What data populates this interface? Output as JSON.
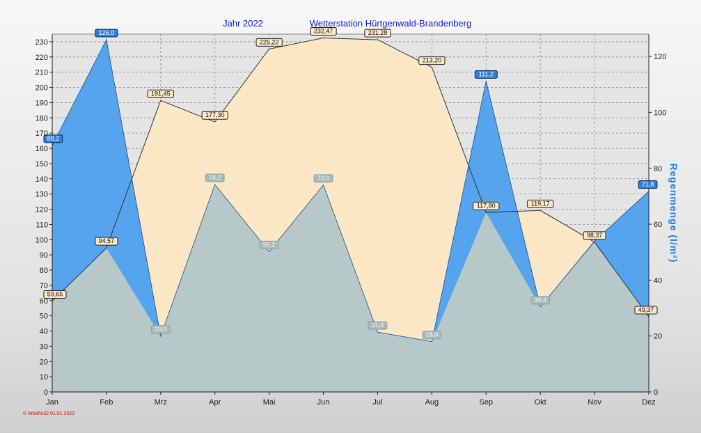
{
  "title": {
    "year": "Jahr  2022",
    "station": "Wetterstation Hürtgenwald-Brandenberg"
  },
  "footer": "© WsWin32  01.01.2023",
  "colors": {
    "background_top": "#f7f7f7",
    "background_bottom": "#cfcfcf",
    "plot_background": "#e4e4e4",
    "sunshine_fill": "#fbe6c6",
    "rain_fill": "#56a4ee",
    "overlap_fill": "#b6c8c8",
    "title": "#1c1cc8",
    "right_axis_label": "#2a7fe0",
    "left_axis_label": "#f2c58a"
  },
  "chart_data": {
    "type": "area",
    "categories": [
      "Jan",
      "Feb",
      "Mrz",
      "Apr",
      "Mai",
      "Jun",
      "Jul",
      "Aug",
      "Sep",
      "Okt",
      "Nov",
      "Dez"
    ],
    "xlabel": "",
    "y_left": {
      "label": "",
      "ylim": [
        0,
        235
      ],
      "ticks": [
        0,
        10,
        20,
        30,
        40,
        50,
        60,
        70,
        80,
        90,
        100,
        110,
        120,
        130,
        140,
        150,
        160,
        170,
        180,
        190,
        200,
        210,
        220,
        230
      ]
    },
    "y_right": {
      "label": "Regenmenge  (l/m²)",
      "ylim": [
        0,
        128
      ],
      "ticks": [
        0,
        20,
        40,
        60,
        80,
        100,
        120
      ]
    },
    "grid": true,
    "series": [
      {
        "axis": "left",
        "color": "#fbe6c6",
        "values": [
          59.65,
          94.57,
          191.45,
          177.3,
          225.22,
          232.47,
          231.28,
          213.2,
          117.8,
          119.17,
          98.37,
          49.37
        ],
        "labels": [
          "59,65",
          "94,57",
          "191,45",
          "177,30",
          "225,22",
          "232,47",
          "231,28",
          "213,20",
          "117,80",
          "119,17",
          "98,37",
          "49,37"
        ]
      },
      {
        "axis": "right",
        "color": "#56a4ee",
        "values": [
          88.2,
          126.0,
          20.0,
          74.2,
          50.2,
          74.0,
          21.4,
          18.0,
          111.2,
          30.4,
          54.0,
          71.8
        ],
        "labels": [
          "88,2",
          "126,0",
          "20,0",
          "74,2",
          "50,2",
          "74,0",
          "21,4",
          "18,0",
          "111,2",
          "30,4",
          "",
          "71,8"
        ]
      }
    ]
  }
}
